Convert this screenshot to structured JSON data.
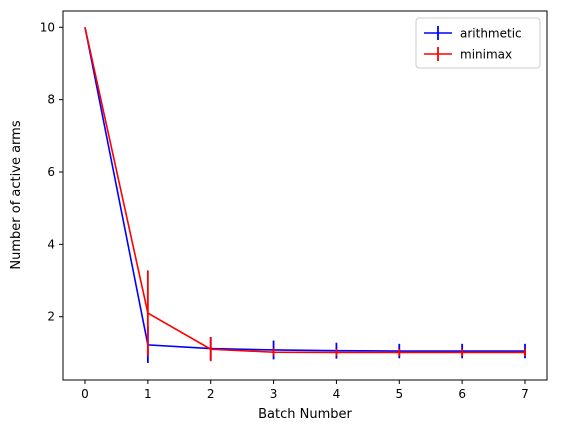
{
  "chart_data": {
    "type": "line",
    "title": "",
    "xlabel": "Batch Number",
    "ylabel": "Number of active arms",
    "xlim": [
      -0.35,
      7.35
    ],
    "ylim": [
      0.25,
      10.45
    ],
    "xticks": [
      0,
      1,
      2,
      3,
      4,
      5,
      6,
      7
    ],
    "yticks": [
      2,
      4,
      6,
      8,
      10
    ],
    "grid": false,
    "legend_position": "top-right",
    "x": [
      0,
      1,
      2,
      3,
      4,
      5,
      6,
      7
    ],
    "series": [
      {
        "name": "arithmetic",
        "color": "#0000ff",
        "values": [
          10,
          1.22,
          1.12,
          1.08,
          1.06,
          1.05,
          1.05,
          1.05
        ],
        "err": [
          0,
          0.5,
          0.32,
          0.26,
          0.22,
          0.2,
          0.2,
          0.2
        ]
      },
      {
        "name": "minimax",
        "color": "#ff0000",
        "values": [
          10,
          2.1,
          1.1,
          1.02,
          1.01,
          1.01,
          1.01,
          1.01
        ],
        "err": [
          0,
          1.18,
          0.33,
          0.1,
          0.1,
          0.1,
          0.1,
          0.1
        ]
      }
    ]
  }
}
